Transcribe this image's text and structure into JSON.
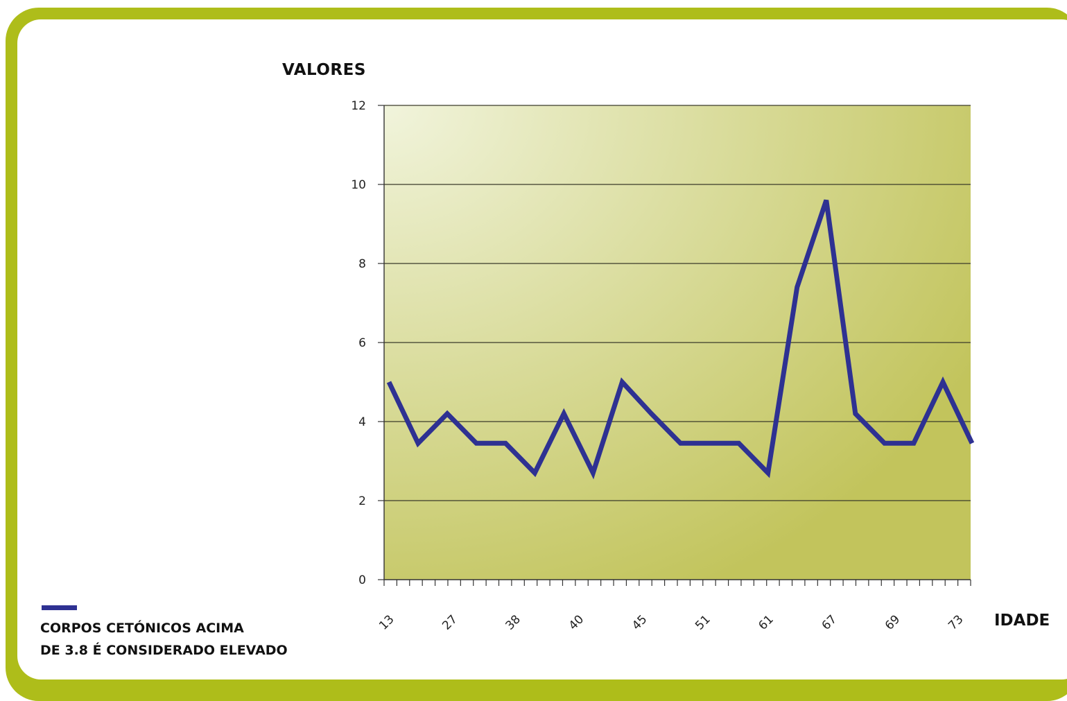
{
  "colors": {
    "frame": "#aebd1a",
    "line": "#2e3192",
    "plot_gradient_light": "#f1f4dc",
    "plot_gradient_dark": "#c2c45c"
  },
  "legend": {
    "line1": "CORPOS CETÓNICOS ACIMA",
    "line2": "DE 3.8 É CONSIDERADO ELEVADO"
  },
  "chart_data": {
    "type": "line",
    "title": "",
    "ylabel": "VALORES",
    "xlabel": "IDADE",
    "ylim": [
      0,
      12
    ],
    "yticks": [
      "0",
      "2",
      "4",
      "6",
      "8",
      "10",
      "12"
    ],
    "grid": "horizontal",
    "legend_position": "bottom-left",
    "x_tick_labels": [
      "13",
      "27",
      "38",
      "40",
      "45",
      "51",
      "61",
      "67",
      "69",
      "73"
    ],
    "series": [
      {
        "name": "CORPOS CETÓNICOS ACIMA DE 3.8 É CONSIDERADO ELEVADO",
        "values": [
          5.0,
          3.45,
          4.2,
          3.45,
          3.45,
          2.7,
          4.2,
          2.7,
          5.0,
          4.2,
          3.45,
          3.45,
          3.45,
          2.7,
          7.4,
          9.6,
          4.2,
          3.45,
          3.45,
          5.0,
          3.45
        ]
      }
    ]
  }
}
